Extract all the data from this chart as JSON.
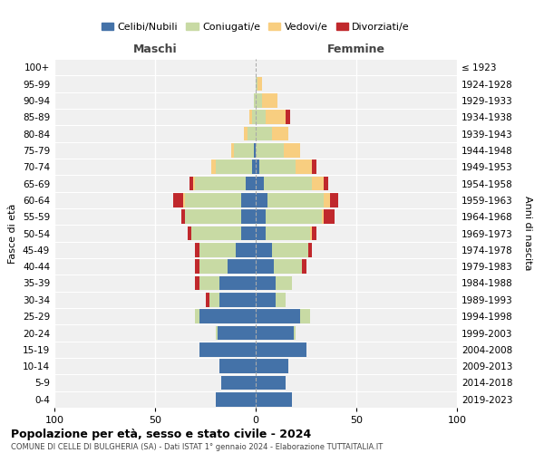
{
  "age_groups": [
    "0-4",
    "5-9",
    "10-14",
    "15-19",
    "20-24",
    "25-29",
    "30-34",
    "35-39",
    "40-44",
    "45-49",
    "50-54",
    "55-59",
    "60-64",
    "65-69",
    "70-74",
    "75-79",
    "80-84",
    "85-89",
    "90-94",
    "95-99",
    "100+"
  ],
  "birth_years": [
    "2019-2023",
    "2014-2018",
    "2009-2013",
    "2004-2008",
    "1999-2003",
    "1994-1998",
    "1989-1993",
    "1984-1988",
    "1979-1983",
    "1974-1978",
    "1969-1973",
    "1964-1968",
    "1959-1963",
    "1954-1958",
    "1949-1953",
    "1944-1948",
    "1939-1943",
    "1934-1938",
    "1929-1933",
    "1924-1928",
    "≤ 1923"
  ],
  "maschi": {
    "celibi": [
      20,
      17,
      18,
      28,
      19,
      28,
      18,
      18,
      14,
      10,
      7,
      7,
      7,
      5,
      2,
      1,
      0,
      0,
      0,
      0,
      0
    ],
    "coniugati": [
      0,
      0,
      0,
      0,
      1,
      2,
      5,
      10,
      14,
      18,
      25,
      28,
      28,
      25,
      18,
      10,
      4,
      2,
      1,
      0,
      0
    ],
    "vedovi": [
      0,
      0,
      0,
      0,
      0,
      0,
      0,
      0,
      0,
      0,
      0,
      0,
      1,
      1,
      2,
      1,
      2,
      1,
      0,
      0,
      0
    ],
    "divorziati": [
      0,
      0,
      0,
      0,
      0,
      0,
      2,
      2,
      2,
      2,
      2,
      2,
      5,
      2,
      0,
      0,
      0,
      0,
      0,
      0,
      0
    ]
  },
  "femmine": {
    "nubili": [
      18,
      15,
      16,
      25,
      19,
      22,
      10,
      10,
      9,
      8,
      5,
      5,
      6,
      4,
      2,
      0,
      0,
      0,
      0,
      0,
      0
    ],
    "coniugate": [
      0,
      0,
      0,
      0,
      1,
      5,
      5,
      8,
      14,
      18,
      22,
      28,
      28,
      24,
      18,
      14,
      8,
      5,
      3,
      1,
      0
    ],
    "vedove": [
      0,
      0,
      0,
      0,
      0,
      0,
      0,
      0,
      0,
      0,
      1,
      1,
      3,
      6,
      8,
      8,
      8,
      10,
      8,
      2,
      0
    ],
    "divorziate": [
      0,
      0,
      0,
      0,
      0,
      0,
      0,
      0,
      2,
      2,
      2,
      5,
      4,
      2,
      2,
      0,
      0,
      2,
      0,
      0,
      0
    ]
  },
  "colors": {
    "celibi_nubili": "#4472a8",
    "coniugati": "#c8daa4",
    "vedovi": "#f8ce80",
    "divorziati": "#c0282c"
  },
  "xlim": [
    -100,
    100
  ],
  "xticks": [
    -100,
    -50,
    0,
    50,
    100
  ],
  "xticklabels": [
    "100",
    "50",
    "0",
    "50",
    "100"
  ],
  "title": "Popolazione per età, sesso e stato civile - 2024",
  "subtitle": "COMUNE DI CELLE DI BULGHERIA (SA) - Dati ISTAT 1° gennaio 2024 - Elaborazione TUTTAITALIA.IT",
  "ylabel_left": "Fasce di età",
  "ylabel_right": "Anni di nascita",
  "label_maschi": "Maschi",
  "label_femmine": "Femmine",
  "legend_labels": [
    "Celibi/Nubili",
    "Coniugati/e",
    "Vedovi/e",
    "Divorziati/e"
  ],
  "bg_color": "#ffffff",
  "plot_bg_color": "#f0f0f0",
  "grid_color": "#ffffff"
}
